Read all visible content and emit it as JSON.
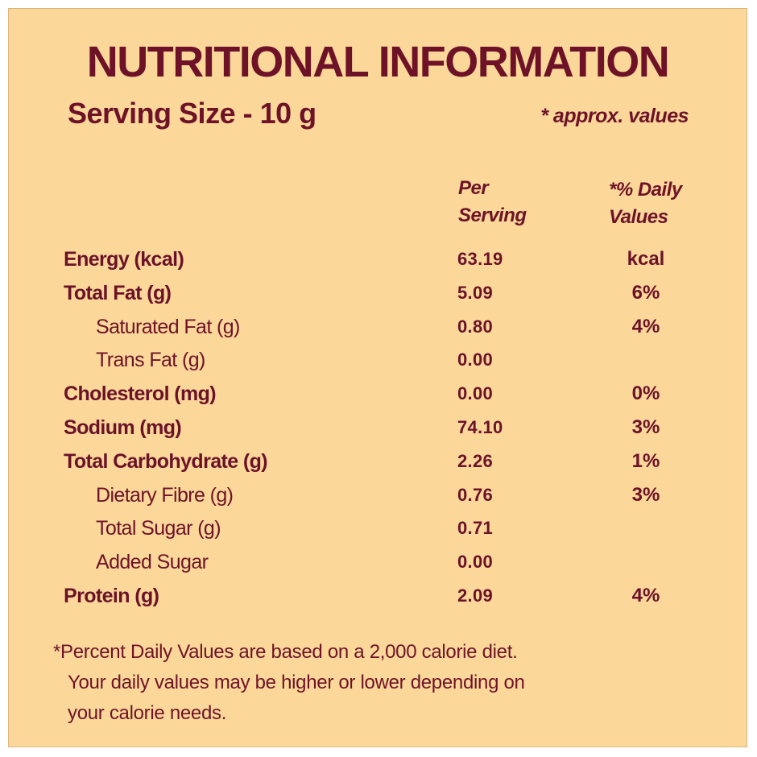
{
  "title": "NUTRITIONAL INFORMATION",
  "serving_size": "Serving Size  - 10 g",
  "approx_note": "* approx. values",
  "columns": {
    "per_line1": "Per",
    "per_line2": "Serving",
    "dv_line1": "*% Daily",
    "dv_line2": "Values"
  },
  "rows": [
    {
      "name": "Energy (kcal)",
      "value": "63.19",
      "dv": "kcal"
    },
    {
      "name": "Total Fat (g)",
      "value": "5.09",
      "dv": "6%"
    },
    {
      "name": "Saturated Fat (g)",
      "value": "0.80",
      "dv": "4%"
    },
    {
      "name": "Trans Fat (g)",
      "value": "0.00",
      "dv": ""
    },
    {
      "name": "Cholesterol (mg)",
      "value": "0.00",
      "dv": "0%"
    },
    {
      "name": "Sodium (mg)",
      "value": "74.10",
      "dv": "3%"
    },
    {
      "name": "Total Carbohydrate (g)",
      "value": "2.26",
      "dv": "1%"
    },
    {
      "name": "Dietary Fibre (g)",
      "value": "0.76",
      "dv": "3%"
    },
    {
      "name": "Total Sugar (g)",
      "value": "0.71",
      "dv": ""
    },
    {
      "name": "Added Sugar",
      "value": "0.00",
      "dv": ""
    },
    {
      "name": "Protein (g)",
      "value": "2.09",
      "dv": "4%"
    }
  ],
  "footnote": {
    "line1": "*Percent Daily Values are based on a 2,000 calorie diet.",
    "line2": "Your daily values may be higher or lower depending on",
    "line3": "your calorie needs."
  },
  "colors": {
    "background": "#fbd79a",
    "text": "#6e1327"
  }
}
